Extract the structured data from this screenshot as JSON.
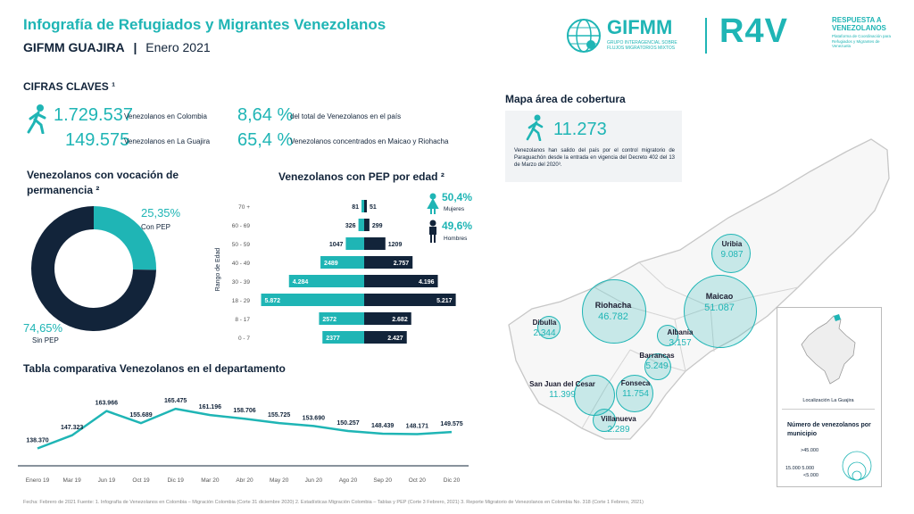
{
  "header": {
    "title": "Infografía de Refugiados y Migrantes Venezolanos",
    "org": "GIFMM GUAJIRA",
    "date": "Enero 2021",
    "logo_gifmm": "GIFMM",
    "logo_gifmm_sub": "GRUPO INTERAGENCIAL SOBRE FLUJOS MIGRATORIOS MIXTOS",
    "logo_r4v": "R4V",
    "logo_r4v_title": "RESPUESTA A VENEZOLANOS",
    "logo_r4v_sub": "Plataforma de Coordinación para Refugiados y Migrantes de Venezuela"
  },
  "key_figures": {
    "heading": "CIFRAS CLAVES ¹",
    "colombia_value": "1.729.537",
    "colombia_label": "Venezolanos en Colombia",
    "guajira_value": "149.575",
    "guajira_label": "Venezolanos en La Guajira",
    "pct_total_value": "8,64 %",
    "pct_total_label": "del total de Venezolanos en el país",
    "pct_maicao_value": "65,4 %",
    "pct_maicao_label": "Venezolanos concentrados en Maicao y Riohacha"
  },
  "permanence": {
    "heading": "Venezolanos con vocación de permanencia ²",
    "pep_pct": "25,35%",
    "pep_label": "Con PEP",
    "sin_pep_pct": "74,65%",
    "sin_pep_label": "Sin PEP",
    "colors": {
      "pep": "#1fb5b5",
      "sin_pep": "#12243a"
    }
  },
  "pep_age": {
    "heading": "Venezolanos con PEP por edad ²",
    "ylabel": "Rango de Edad",
    "women_pct": "50,4%",
    "women_label": "Mujeres",
    "men_pct": "49,6%",
    "men_label": "Hombres"
  },
  "map": {
    "heading": "Mapa área de cobertura",
    "departures_value": "11.273",
    "departures_text": "Venezolanos han salido del país por el control migratorio de Paraguachón desde la entrada en vigencia del Decreto 402 del 13 de Marzo del 2020³.",
    "municipalities": [
      {
        "name": "Uribia",
        "value": "9.087"
      },
      {
        "name": "Riohacha",
        "value": "46.782"
      },
      {
        "name": "Maicao",
        "value": "51.087"
      },
      {
        "name": "Dibulla",
        "value": "2.344"
      },
      {
        "name": "Albania",
        "value": "3.157"
      },
      {
        "name": "Barrancas",
        "value": "5.249"
      },
      {
        "name": "San Juan del Cesar",
        "value": "11.399"
      },
      {
        "name": "Fonseca",
        "value": "11.754"
      },
      {
        "name": "Villanueva",
        "value": "2.289"
      }
    ],
    "inset_caption": "Localización La Guajira",
    "legend_title": "Número de venezolanos por municipio",
    "legend_large": ">45.000",
    "legend_mid": "15.000 5.000",
    "legend_small": "<5.000"
  },
  "trend": {
    "heading": "Tabla comparativa Venezolanos en el departamento"
  },
  "footer": {
    "text": "Fecha: Febrero de 2021      Fuente: 1. Infografía de Venezolanos en Colombia – Migración Colombia (Corte 31 diciembre 2020)   2. Estadísticas Migración Colombia – Tablas y PEP (Corte 3 Febrero, 2021)   3. Reporte Migratorio de Venezolanos en Colombia No. 318 (Corte 1 Febrero, 2021)"
  },
  "chart_data": [
    {
      "type": "pie",
      "title": "Venezolanos con vocación de permanencia",
      "categories": [
        "Con PEP",
        "Sin PEP"
      ],
      "values": [
        25.35,
        74.65
      ]
    },
    {
      "type": "bar",
      "title": "Venezolanos con PEP por edad",
      "ylabel": "Rango de Edad",
      "categories": [
        "70 +",
        "60 - 69",
        "50 - 59",
        "40 - 49",
        "30 - 39",
        "18 - 29",
        "8 - 17",
        "0 - 7"
      ],
      "series": [
        {
          "name": "Mujeres",
          "values": [
            81,
            326,
            1047,
            2489,
            4284,
            5872,
            2572,
            2377
          ],
          "labels": [
            "81",
            "326",
            "1047",
            "2489",
            "4.284",
            "5.872",
            "2572",
            "2377"
          ],
          "color": "#1fb5b5"
        },
        {
          "name": "Hombres",
          "values": [
            51,
            299,
            1209,
            2757,
            4196,
            5217,
            2682,
            2427
          ],
          "labels": [
            "51",
            "299",
            "1209",
            "2.757",
            "4.196",
            "5.217",
            "2.682",
            "2.427"
          ],
          "color": "#12243a"
        }
      ]
    },
    {
      "type": "line",
      "title": "Tabla comparativa Venezolanos en el departamento",
      "categories": [
        "Enero 19",
        "Mar 19",
        "Jun 19",
        "Oct 19",
        "Dic 19",
        "Mar 20",
        "Abr 20",
        "May 20",
        "Jun 20",
        "Ago 20",
        "Sep 20",
        "Oct 20",
        "Dic 20"
      ],
      "values": [
        138370,
        147323,
        163966,
        155689,
        165475,
        161196,
        158706,
        155725,
        153690,
        150257,
        148439,
        148171,
        149575
      ],
      "labels": [
        "138.370",
        "147.323",
        "163.966",
        "155.689",
        "165.475",
        "161.196",
        "158.706",
        "155.725",
        "153.690",
        "150.257",
        "148.439",
        "148.171",
        "149.575"
      ],
      "color": "#1fb5b5"
    }
  ]
}
